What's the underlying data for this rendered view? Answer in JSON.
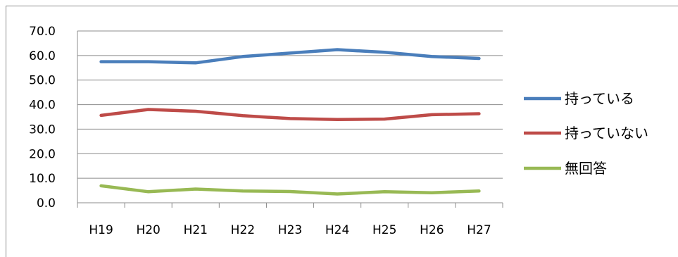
{
  "chart_data": {
    "type": "line",
    "categories": [
      "H19",
      "H20",
      "H21",
      "H22",
      "H23",
      "H24",
      "H25",
      "H26",
      "H27"
    ],
    "series": [
      {
        "name": "持っている",
        "color": "#4a7ebb",
        "values": [
          57.5,
          57.5,
          57.0,
          59.6,
          61.0,
          62.4,
          61.3,
          59.6,
          58.8
        ]
      },
      {
        "name": "持っていない",
        "color": "#be4b48",
        "values": [
          35.6,
          38.0,
          37.3,
          35.5,
          34.3,
          33.9,
          34.1,
          35.9,
          36.3
        ]
      },
      {
        "name": "無回答",
        "color": "#98b954",
        "values": [
          6.9,
          4.5,
          5.6,
          4.8,
          4.6,
          3.6,
          4.5,
          4.1,
          4.8
        ]
      }
    ],
    "ylim": [
      0,
      70
    ],
    "yticks": [
      "0.0",
      "10.0",
      "20.0",
      "30.0",
      "40.0",
      "50.0",
      "60.0",
      "70.0"
    ],
    "grid": true,
    "legend": "right"
  }
}
